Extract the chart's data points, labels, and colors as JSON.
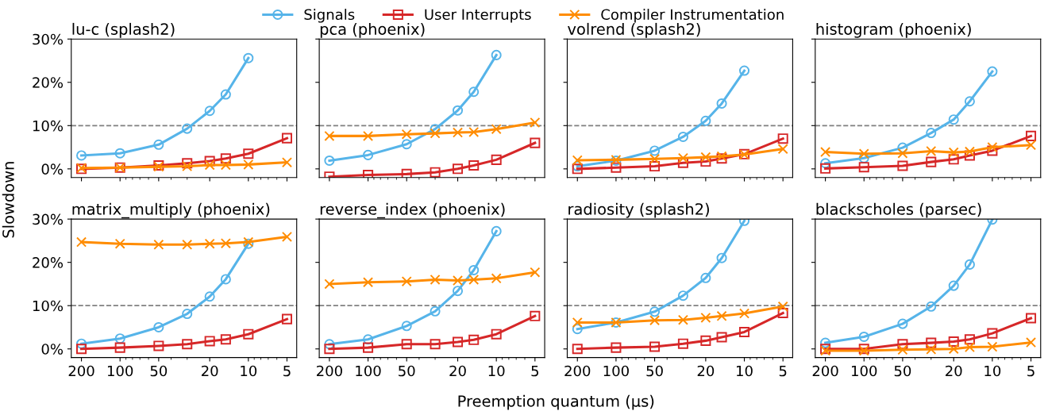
{
  "chart_data": [
    {
      "type": "line",
      "title": "lu-c (splash2)",
      "ylabel": "Slowdown",
      "legend": "top",
      "log": "x",
      "grid": false,
      "tick_labels": "y",
      "x": [
        200,
        100,
        50,
        30,
        20,
        15,
        10,
        5
      ],
      "xlim": [
        240,
        4.2
      ],
      "xticks": [
        200,
        100,
        50,
        20,
        10,
        5
      ],
      "ylim": [
        -2,
        30
      ],
      "yticks": [
        {
          "value": 0,
          "label": "0%"
        },
        {
          "value": 10,
          "label": "10%"
        },
        {
          "value": 20,
          "label": "20%"
        },
        {
          "value": 30,
          "label": "30%"
        }
      ],
      "ref_lines": [
        {
          "axis": "y",
          "value": 10,
          "label": null,
          "color": "#808080",
          "line_style": "dashed"
        }
      ],
      "series": [
        {
          "name": "Signals",
          "color": "#56b4e9",
          "marker": "circle",
          "values": [
            3.1,
            3.6,
            5.6,
            9.3,
            13.4,
            17.2,
            25.6,
            null
          ]
        },
        {
          "name": "User Interrupts",
          "color": "#d62728",
          "marker": "square",
          "values": [
            0.0,
            0.3,
            0.8,
            1.3,
            1.8,
            2.4,
            3.5,
            7.1
          ]
        },
        {
          "name": "Compiler Instrumentation",
          "color": "#ff8c00",
          "marker": "cross",
          "values": [
            0.2,
            0.3,
            0.5,
            0.6,
            0.9,
            0.9,
            1.0,
            1.5
          ]
        }
      ]
    },
    {
      "type": "line",
      "title": "pca (phoenix)",
      "log": "x",
      "grid": false,
      "tick_labels": false,
      "x": [
        200,
        100,
        50,
        30,
        20,
        15,
        10,
        5
      ],
      "xlim": [
        240,
        4.2
      ],
      "xticks": [
        200,
        100,
        50,
        20,
        10,
        5
      ],
      "ylim": [
        -2,
        30
      ],
      "yticks": [
        {
          "value": 0,
          "label": null
        },
        {
          "value": 10,
          "label": null
        },
        {
          "value": 20,
          "label": null
        },
        {
          "value": 30,
          "label": null
        }
      ],
      "ref_lines": [
        {
          "axis": "y",
          "value": 10,
          "label": null,
          "color": "#808080",
          "line_style": "dashed"
        }
      ],
      "series": [
        {
          "color": "#56b4e9",
          "marker": "circle",
          "values": [
            1.9,
            3.2,
            5.7,
            9.2,
            13.5,
            17.8,
            26.3,
            null
          ]
        },
        {
          "color": "#d62728",
          "marker": "square",
          "values": [
            -1.8,
            -1.4,
            -1.2,
            -0.8,
            0.0,
            0.8,
            2.1,
            6.0
          ]
        },
        {
          "color": "#ff8c00",
          "marker": "cross",
          "values": [
            7.6,
            7.6,
            8.0,
            8.2,
            8.4,
            8.5,
            9.2,
            10.7
          ]
        }
      ]
    },
    {
      "type": "line",
      "title": "volrend (splash2)",
      "log": "x",
      "grid": false,
      "tick_labels": false,
      "x": [
        200,
        100,
        50,
        30,
        20,
        15,
        10,
        5
      ],
      "xlim": [
        240,
        4.2
      ],
      "xticks": [
        200,
        100,
        50,
        20,
        10,
        5
      ],
      "ylim": [
        -2,
        30
      ],
      "yticks": [
        {
          "value": 0,
          "label": null
        },
        {
          "value": 10,
          "label": null
        },
        {
          "value": 20,
          "label": null
        },
        {
          "value": 30,
          "label": null
        }
      ],
      "ref_lines": [
        {
          "axis": "y",
          "value": 10,
          "label": null,
          "color": "#808080",
          "line_style": "dashed"
        }
      ],
      "series": [
        {
          "color": "#56b4e9",
          "marker": "circle",
          "values": [
            0.6,
            1.9,
            4.2,
            7.4,
            11.1,
            15.1,
            22.7,
            null
          ]
        },
        {
          "color": "#d62728",
          "marker": "square",
          "values": [
            0.0,
            0.3,
            0.6,
            1.4,
            1.7,
            2.4,
            3.4,
            7.0
          ]
        },
        {
          "color": "#ff8c00",
          "marker": "cross",
          "values": [
            2.0,
            2.1,
            2.3,
            2.5,
            2.7,
            2.9,
            3.3,
            4.6
          ]
        }
      ]
    },
    {
      "type": "line",
      "title": "histogram (phoenix)",
      "log": "x",
      "grid": false,
      "tick_labels": false,
      "x": [
        200,
        100,
        50,
        30,
        20,
        15,
        10,
        5
      ],
      "xlim": [
        240,
        4.2
      ],
      "xticks": [
        200,
        100,
        50,
        20,
        10,
        5
      ],
      "ylim": [
        -2,
        30
      ],
      "yticks": [
        {
          "value": 0,
          "label": null
        },
        {
          "value": 10,
          "label": null
        },
        {
          "value": 20,
          "label": null
        },
        {
          "value": 30,
          "label": null
        }
      ],
      "ref_lines": [
        {
          "axis": "y",
          "value": 10,
          "label": null,
          "color": "#808080",
          "line_style": "dashed"
        }
      ],
      "series": [
        {
          "color": "#56b4e9",
          "marker": "circle",
          "values": [
            1.3,
            2.5,
            4.9,
            8.3,
            11.4,
            15.6,
            22.5,
            null
          ]
        },
        {
          "color": "#d62728",
          "marker": "square",
          "values": [
            0.1,
            0.4,
            0.7,
            1.6,
            2.2,
            3.1,
            4.2,
            7.6
          ]
        },
        {
          "color": "#ff8c00",
          "marker": "cross",
          "values": [
            3.9,
            3.5,
            3.6,
            4.1,
            3.8,
            4.0,
            5.0,
            5.5
          ]
        }
      ]
    },
    {
      "type": "line",
      "title": "matrix_multiply (phoenix)",
      "log": "x",
      "grid": false,
      "x": [
        200,
        100,
        50,
        30,
        20,
        15,
        10,
        5
      ],
      "xlim": [
        240,
        4.2
      ],
      "xticks": [
        200,
        100,
        50,
        20,
        10,
        5
      ],
      "ylim": [
        -2,
        30
      ],
      "yticks": [
        {
          "value": 0,
          "label": "0%"
        },
        {
          "value": 10,
          "label": "10%"
        },
        {
          "value": 20,
          "label": "20%"
        },
        {
          "value": 30,
          "label": "30%"
        }
      ],
      "ref_lines": [
        {
          "axis": "y",
          "value": 10,
          "label": null,
          "color": "#808080",
          "line_style": "dashed"
        }
      ],
      "series": [
        {
          "color": "#56b4e9",
          "marker": "circle",
          "values": [
            1.2,
            2.4,
            5.0,
            8.1,
            12.1,
            16.1,
            24.3,
            null
          ]
        },
        {
          "color": "#d62728",
          "marker": "square",
          "values": [
            0.0,
            0.3,
            0.7,
            1.1,
            1.8,
            2.2,
            3.4,
            6.9
          ]
        },
        {
          "color": "#ff8c00",
          "marker": "cross",
          "values": [
            24.7,
            24.3,
            24.1,
            24.1,
            24.3,
            24.4,
            24.7,
            25.9
          ]
        }
      ]
    },
    {
      "type": "line",
      "title": "reverse_index (phoenix)",
      "xlabel": "Preemption quantum (μs)",
      "log": "x",
      "grid": false,
      "tick_labels": "x",
      "x": [
        200,
        100,
        50,
        30,
        20,
        15,
        10,
        5
      ],
      "xlim": [
        240,
        4.2
      ],
      "xticks": [
        200,
        100,
        50,
        20,
        10,
        5
      ],
      "ylim": [
        -2,
        30
      ],
      "yticks": [
        {
          "value": 0,
          "label": null
        },
        {
          "value": 10,
          "label": null
        },
        {
          "value": 20,
          "label": null
        },
        {
          "value": 30,
          "label": null
        }
      ],
      "ref_lines": [
        {
          "axis": "y",
          "value": 10,
          "label": null,
          "color": "#808080",
          "line_style": "dashed"
        }
      ],
      "series": [
        {
          "color": "#56b4e9",
          "marker": "circle",
          "values": [
            1.1,
            2.2,
            5.3,
            8.7,
            13.4,
            18.2,
            27.2,
            null
          ]
        },
        {
          "color": "#d62728",
          "marker": "square",
          "values": [
            0.0,
            0.3,
            1.1,
            1.1,
            1.6,
            2.1,
            3.4,
            7.6
          ]
        },
        {
          "color": "#ff8c00",
          "marker": "cross",
          "values": [
            15.0,
            15.4,
            15.6,
            16.0,
            15.8,
            16.0,
            16.3,
            17.7
          ]
        }
      ]
    },
    {
      "type": "line",
      "title": "radiosity (splash2)",
      "log": "x",
      "grid": false,
      "tick_labels": "x",
      "x": [
        200,
        100,
        50,
        30,
        20,
        15,
        10,
        5
      ],
      "xlim": [
        240,
        4.2
      ],
      "xticks": [
        200,
        100,
        50,
        20,
        10,
        5
      ],
      "ylim": [
        -2,
        30
      ],
      "yticks": [
        {
          "value": 0,
          "label": null
        },
        {
          "value": 10,
          "label": null
        },
        {
          "value": 20,
          "label": null
        },
        {
          "value": 30,
          "label": null
        }
      ],
      "ref_lines": [
        {
          "axis": "y",
          "value": 10,
          "label": null,
          "color": "#808080",
          "line_style": "dashed"
        }
      ],
      "series": [
        {
          "color": "#56b4e9",
          "marker": "circle",
          "values": [
            4.6,
            6.1,
            8.6,
            12.3,
            16.4,
            21.0,
            29.6,
            null
          ]
        },
        {
          "color": "#d62728",
          "marker": "square",
          "values": [
            0.0,
            0.3,
            0.5,
            1.2,
            1.9,
            2.7,
            3.9,
            8.3
          ]
        },
        {
          "color": "#ff8c00",
          "marker": "cross",
          "values": [
            6.1,
            6.1,
            6.6,
            6.7,
            7.2,
            7.6,
            8.2,
            9.8
          ]
        }
      ]
    },
    {
      "type": "line",
      "title": "blackscholes (parsec)",
      "log": "x",
      "grid": false,
      "tick_labels": "x",
      "x": [
        200,
        100,
        50,
        30,
        20,
        15,
        10,
        5
      ],
      "xlim": [
        240,
        4.2
      ],
      "xticks": [
        200,
        100,
        50,
        20,
        10,
        5
      ],
      "ylim": [
        -2,
        30
      ],
      "yticks": [
        {
          "value": 0,
          "label": null
        },
        {
          "value": 10,
          "label": null
        },
        {
          "value": 20,
          "label": null
        },
        {
          "value": 30,
          "label": null
        }
      ],
      "ref_lines": [
        {
          "axis": "y",
          "value": 10,
          "label": null,
          "color": "#808080",
          "line_style": "dashed"
        }
      ],
      "series": [
        {
          "color": "#56b4e9",
          "marker": "circle",
          "values": [
            1.4,
            2.8,
            5.8,
            9.8,
            14.6,
            19.5,
            29.9,
            null
          ]
        },
        {
          "color": "#d62728",
          "marker": "square",
          "values": [
            0.0,
            0.0,
            1.1,
            1.4,
            1.7,
            2.2,
            3.6,
            7.1
          ]
        },
        {
          "color": "#ff8c00",
          "marker": "cross",
          "values": [
            -0.4,
            -0.4,
            -0.2,
            -0.1,
            0.0,
            0.4,
            0.5,
            1.5
          ]
        }
      ]
    }
  ]
}
